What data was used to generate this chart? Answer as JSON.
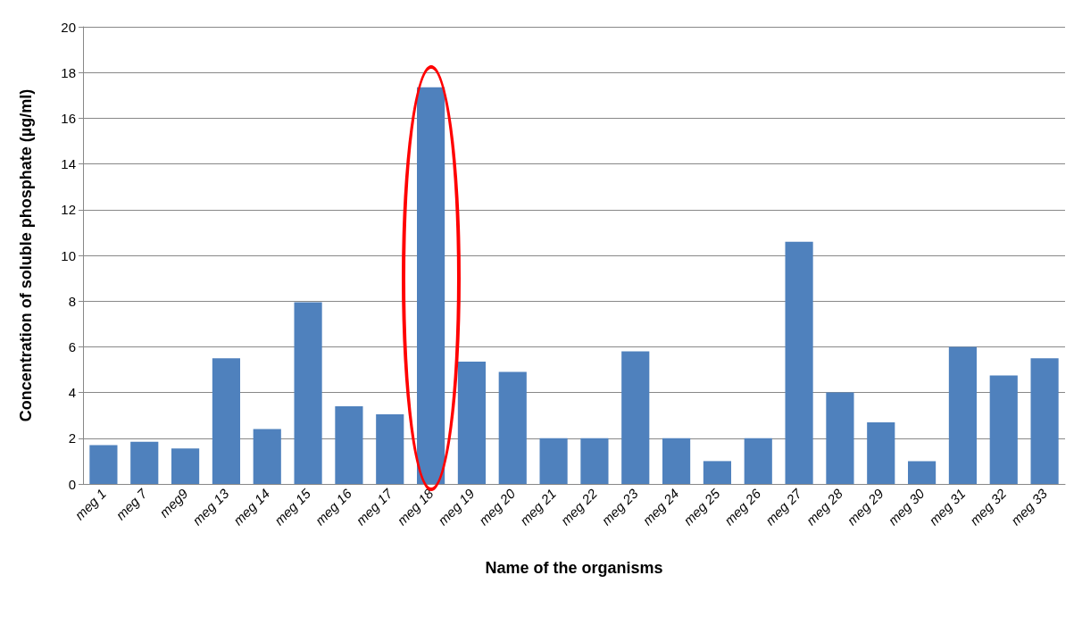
{
  "chart_data": {
    "type": "bar",
    "xlabel": "Name of the organisms",
    "ylabel": "Concentration of soluble phosphate (µg/ml)",
    "categories": [
      "meg 1",
      "meg 7",
      "meg9",
      "meg 13",
      "meg 14",
      "meg 15",
      "meg 16",
      "meg 17",
      "meg 18",
      "meg 19",
      "meg 20",
      "meg 21",
      "meg 22",
      "meg 23",
      "meg 24",
      "meg 25",
      "meg 26",
      "meg 27",
      "meg 28",
      "meg 29",
      "meg 30",
      "meg 31",
      "meg 32",
      "meg 33"
    ],
    "values": [
      1.7,
      1.85,
      1.55,
      5.5,
      2.4,
      7.95,
      3.4,
      3.05,
      17.35,
      5.35,
      4.9,
      2.0,
      2.0,
      5.8,
      2.0,
      1.0,
      2.0,
      10.6,
      4.0,
      2.7,
      1.0,
      6.0,
      4.75,
      5.5
    ],
    "color": "#4f81bd",
    "ylim": [
      0,
      20
    ],
    "yticks": [
      0,
      2,
      4,
      6,
      8,
      10,
      12,
      14,
      16,
      18,
      20
    ],
    "grid": "y"
  }
}
